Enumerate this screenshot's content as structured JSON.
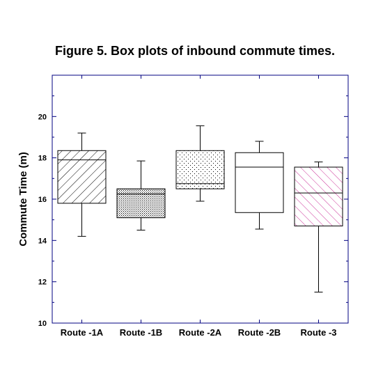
{
  "chart_data": {
    "type": "box",
    "title": "Figure 5. Box plots of inbound commute times.",
    "xlabel": "",
    "ylabel": "Commute Time (m)",
    "ylim": [
      10,
      22
    ],
    "yticks": [
      "10",
      "12",
      "14",
      "16",
      "18",
      "20"
    ],
    "categories": [
      "Route -1A",
      "Route -1B",
      "Route -2A",
      "Route -2B",
      "Route -3"
    ],
    "boxes": [
      {
        "category": "Route -1A",
        "min": 14.2,
        "q1": 15.8,
        "median": 17.9,
        "q3": 18.35,
        "max": 19.2,
        "pattern": "hatch-slash",
        "color": "#000000"
      },
      {
        "category": "Route -1B",
        "min": 14.5,
        "q1": 15.1,
        "median": 16.25,
        "q3": 16.5,
        "max": 17.85,
        "pattern": "dense-dots",
        "color": "#000000"
      },
      {
        "category": "Route -2A",
        "min": 15.9,
        "q1": 16.5,
        "median": 16.75,
        "q3": 18.35,
        "max": 19.55,
        "pattern": "sparse-dots",
        "color": "#000000"
      },
      {
        "category": "Route -2B",
        "min": 14.55,
        "q1": 15.35,
        "median": 17.55,
        "q3": 18.25,
        "max": 18.8,
        "pattern": "none",
        "color": "#000000"
      },
      {
        "category": "Route -3",
        "min": 11.5,
        "q1": 14.7,
        "median": 16.3,
        "q3": 17.55,
        "max": 17.8,
        "pattern": "hatch-backslash",
        "color": "#cc3399"
      }
    ],
    "axis_color": "#000080",
    "grid": false,
    "legend": "none"
  }
}
